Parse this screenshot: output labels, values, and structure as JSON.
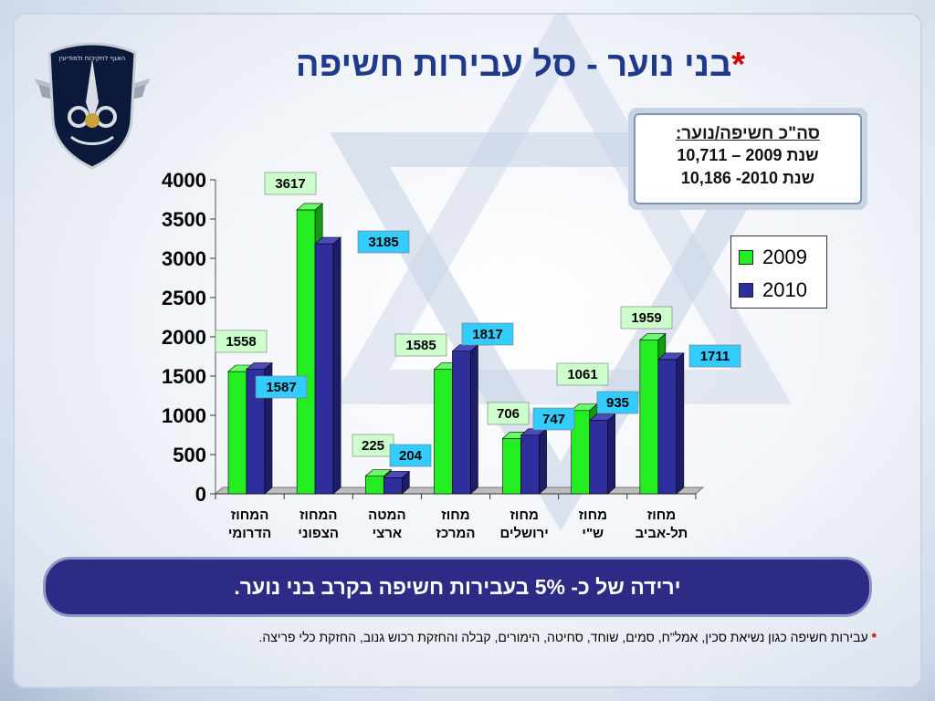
{
  "title": {
    "text": "בני נוער - סל עבירות חשיפה",
    "star": "*"
  },
  "logo": {
    "caption": "האגף לחקירות ולמודיעין"
  },
  "summary": {
    "title": "סה\"כ חשיפה/נוער:",
    "line1": "שנת 2009 – 10,711",
    "line2": "שנת 2010- 10,186"
  },
  "banner": {
    "text": "ירידה של כ- 5% בעבירות חשיפה בקרב בני נוער."
  },
  "footnote": {
    "star": "*",
    "text": "עבירות חשיפה כגון נשיאת סכין, אמל\"ח, סמים, שוחד, סחיטה, הימורים, קבלה והחזקת רכוש גנוב, החזקת כלי פריצה."
  },
  "colors": {
    "series_2009": "#22ee22",
    "series_2010": "#2e2e9c",
    "label_2009_bg": "#ccffcc",
    "label_2010_bg": "#33ccff",
    "title": "#1f3a8a",
    "banner": "#2e2b86"
  },
  "chart_data": {
    "type": "bar",
    "categories": [
      [
        "המחוז",
        "הדרומי"
      ],
      [
        "המחוז",
        "הצפוני"
      ],
      [
        "המטה",
        "ארצי"
      ],
      [
        "מחוז",
        "המרכז"
      ],
      [
        "מחוז",
        "ירושלים"
      ],
      [
        "מחוז",
        "ש\"י"
      ],
      [
        "מחוז",
        "תל-אביב"
      ]
    ],
    "series": [
      {
        "name": "2009",
        "values": [
          1558,
          3617,
          225,
          1585,
          706,
          1061,
          1959
        ]
      },
      {
        "name": "2010",
        "values": [
          1587,
          3185,
          204,
          1817,
          747,
          935,
          1711
        ]
      }
    ],
    "yticks": [
      0,
      500,
      1000,
      1500,
      2000,
      2500,
      3000,
      3500,
      4000
    ],
    "ylim": [
      0,
      4000
    ],
    "legend_position": "right",
    "bar_style": "3d"
  }
}
